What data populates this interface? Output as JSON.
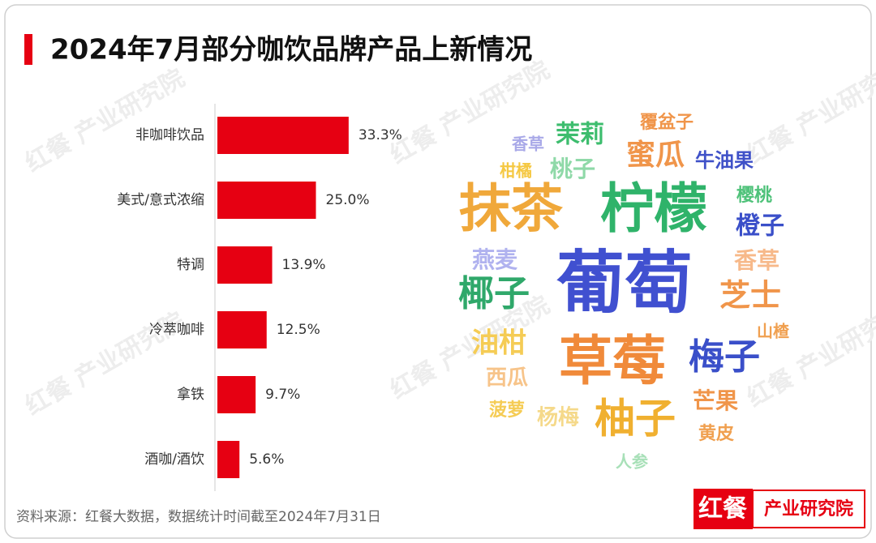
{
  "title": "2024年7月部分咖饮品牌产品上新情况",
  "source": "资料来源：红餐大数据，数据统计时间截至2024年7月31日",
  "watermark": "红餐 产业研究院",
  "logo": {
    "brand": "红餐",
    "name": "产业研究院"
  },
  "chart_data": [
    {
      "type": "bar",
      "orientation": "horizontal",
      "color": "#e60012",
      "categories": [
        "非咖啡饮品",
        "美式/意式浓缩",
        "特调",
        "冷萃咖啡",
        "拿铁",
        "酒咖/酒饮"
      ],
      "values": [
        33.3,
        25.0,
        13.9,
        12.5,
        9.7,
        5.6
      ],
      "value_labels": [
        "33.3%",
        "25.0%",
        "13.9%",
        "12.5%",
        "9.7%",
        "5.6%"
      ]
    },
    {
      "type": "wordcloud",
      "words": [
        {
          "text": "覆盆子",
          "color": "#f0954a"
        },
        {
          "text": "茉莉",
          "color": "#3dbd6e"
        },
        {
          "text": "香草",
          "color": "#a9a9e8"
        },
        {
          "text": "蜜瓜",
          "color": "#f0954a"
        },
        {
          "text": "牛油果",
          "color": "#3f51c8"
        },
        {
          "text": "柑橘",
          "color": "#f5c842"
        },
        {
          "text": "桃子",
          "color": "#8fd9a8"
        },
        {
          "text": "抹茶",
          "color": "#f0a83a"
        },
        {
          "text": "柠檬",
          "color": "#2fb36a"
        },
        {
          "text": "樱桃",
          "color": "#4fc27a"
        },
        {
          "text": "橙子",
          "color": "#3a4fc9"
        },
        {
          "text": "燕麦",
          "color": "#b0b2ef"
        },
        {
          "text": "葡萄",
          "color": "#4050d0"
        },
        {
          "text": "香草",
          "color": "#f7b98a"
        },
        {
          "text": "椰子",
          "color": "#2fa86a"
        },
        {
          "text": "芝士",
          "color": "#f0954a"
        },
        {
          "text": "山楂",
          "color": "#f0a050"
        },
        {
          "text": "油柑",
          "color": "#f5cc55"
        },
        {
          "text": "草莓",
          "color": "#f08a3a"
        },
        {
          "text": "梅子",
          "color": "#3a4fc9"
        },
        {
          "text": "西瓜",
          "color": "#f7c48a"
        },
        {
          "text": "芒果",
          "color": "#f0954a"
        },
        {
          "text": "菠萝",
          "color": "#f5cc55"
        },
        {
          "text": "杨梅",
          "color": "#f5d98a"
        },
        {
          "text": "柚子",
          "color": "#f0b030"
        },
        {
          "text": "黄皮",
          "color": "#f0a050"
        },
        {
          "text": "人参",
          "color": "#a8e0b8"
        }
      ]
    }
  ]
}
